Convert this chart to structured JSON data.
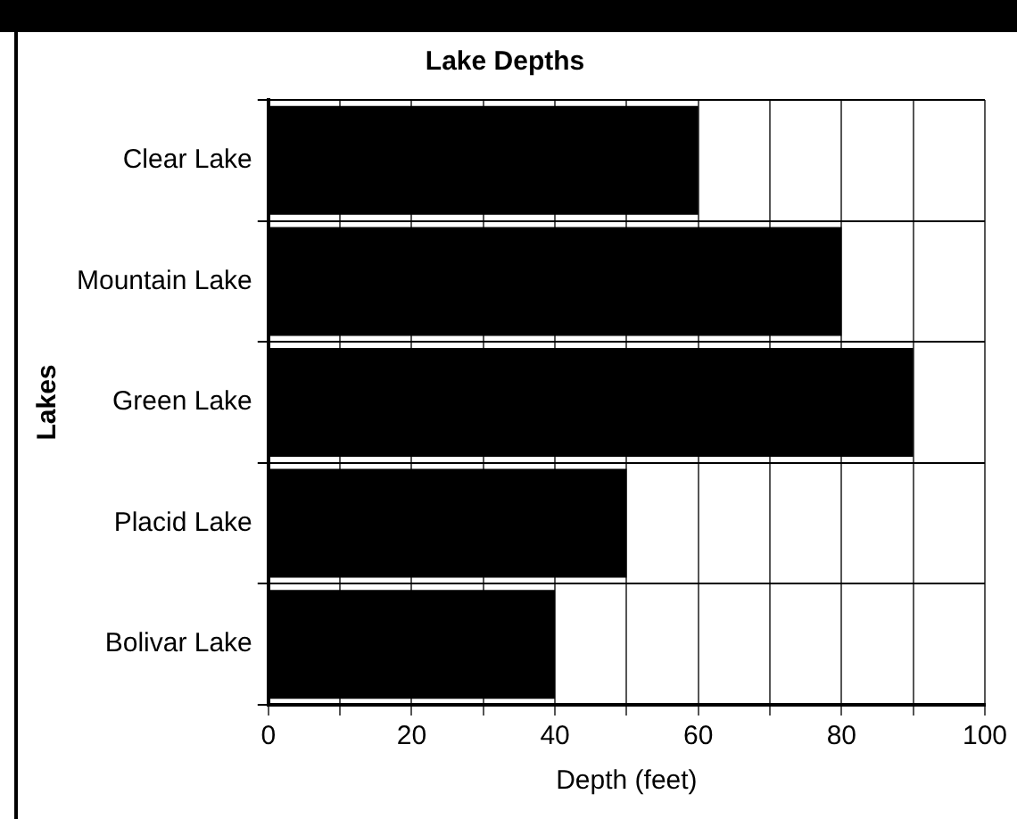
{
  "chart_data": {
    "type": "bar",
    "orientation": "horizontal",
    "title": "Lake Depths",
    "xlabel": "Depth (feet)",
    "ylabel": "Lakes",
    "categories": [
      "Clear Lake",
      "Mountain Lake",
      "Green Lake",
      "Placid Lake",
      "Bolivar Lake"
    ],
    "values": [
      60,
      80,
      90,
      50,
      40
    ],
    "color": "#000000",
    "xlim": [
      0,
      100
    ],
    "xticks": [
      0,
      {
        "value": 10,
        "label": null
      },
      20,
      {
        "value": 30,
        "label": null
      },
      40,
      {
        "value": 50,
        "label": null
      },
      60,
      {
        "value": 70,
        "label": null
      },
      80,
      {
        "value": 90,
        "label": null
      },
      100
    ],
    "grid": true,
    "legend": false
  }
}
